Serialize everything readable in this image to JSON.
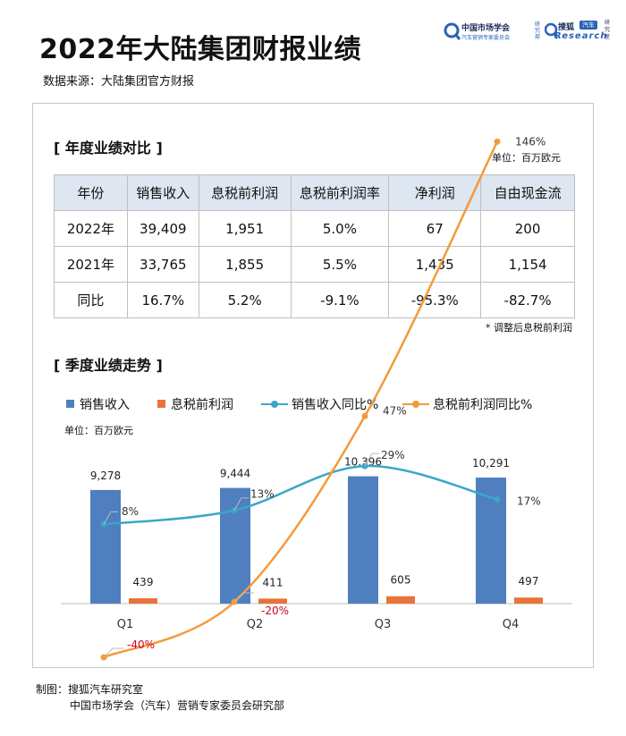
{
  "title": "2022年大陆集团财报业绩",
  "source": "数据来源：大陆集团官方财报",
  "logo": {
    "cmau_name": "中国市场学会",
    "cmau_sub": "汽车营销专家委员会",
    "cmau_vertical": "研究部",
    "sohu_name": "搜狐",
    "sohu_badge": "汽车",
    "sohu_research": "Research",
    "sohu_vertical": "研究室"
  },
  "table_section": {
    "title": "[ 年度业绩对比 ]",
    "unit": "单位：百万欧元",
    "headers": [
      "年份",
      "销售收入",
      "息税前利润",
      "息税前利润率",
      "净利润",
      "自由现金流"
    ],
    "rows": [
      [
        "2022年",
        "39,409",
        "1,951",
        "5.0%",
        "67",
        "200"
      ],
      [
        "2021年",
        "33,765",
        "1,855",
        "5.5%",
        "1,435",
        "1,154"
      ],
      [
        "同比",
        "16.7%",
        "5.2%",
        "-9.1%",
        "-95.3%",
        "-82.7%"
      ]
    ],
    "note": "* 调整后息税前利润"
  },
  "chart_section": {
    "title": "[ 季度业绩走势 ]",
    "unit": "单位：百万欧元"
  },
  "colors": {
    "sales_bar": "#4f7fbe",
    "ebit_bar": "#e8743b",
    "sales_yoy_line": "#3aa7c8",
    "ebit_yoy_line": "#f39b3a",
    "negative_label": "#d0021b",
    "header_bg": "#dde6f1"
  },
  "chart_data": {
    "type": "bar",
    "categories": [
      "Q1",
      "Q2",
      "Q3",
      "Q4"
    ],
    "series": [
      {
        "name": "销售收入",
        "kind": "bar",
        "values": [
          9278,
          9444,
          10396,
          10291
        ],
        "labels": [
          "9,278",
          "9,444",
          "10,396",
          "10,291"
        ]
      },
      {
        "name": "息税前利润",
        "kind": "bar",
        "values": [
          439,
          411,
          605,
          497
        ],
        "labels": [
          "439",
          "411",
          "605",
          "497"
        ]
      },
      {
        "name": "销售收入同比%",
        "kind": "line",
        "values": [
          8,
          13,
          29,
          17
        ],
        "labels": [
          "8%",
          "13%",
          "29%",
          "17%"
        ]
      },
      {
        "name": "息税前利润同比%",
        "kind": "line",
        "values": [
          -40,
          -20,
          47,
          146
        ],
        "labels": [
          "-40%",
          "-20%",
          "47%",
          "146%"
        ]
      }
    ],
    "legend_position": "top",
    "grid": false
  },
  "footer": {
    "line1": "制图：搜狐汽车研究室",
    "line2": "中国市场学会（汽车）营销专家委员会研究部"
  }
}
